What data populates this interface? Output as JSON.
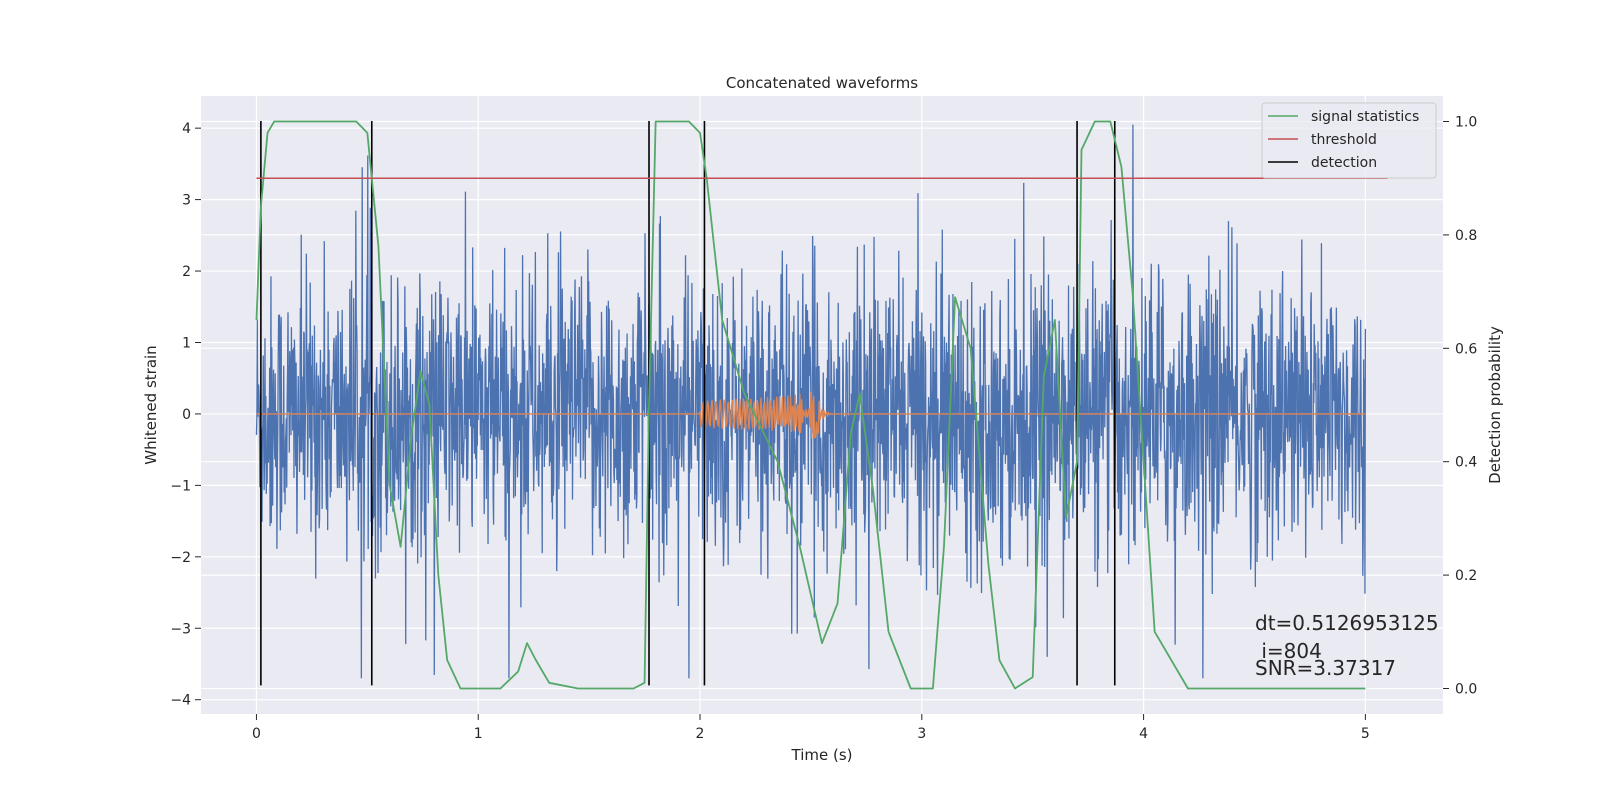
{
  "chart_data": {
    "type": "line",
    "title": "Concatenated waveforms",
    "xlabel": "Time (s)",
    "ylabel_left": "Whitened strain",
    "ylabel_right": "Detection probability",
    "xlim": [
      -0.25,
      5.35
    ],
    "ylim_left": [
      -4.2,
      4.45
    ],
    "ylim_right": [
      -0.045,
      1.045
    ],
    "x_ticks": [
      0,
      1,
      2,
      3,
      4,
      5
    ],
    "y_ticks_left": [
      -4,
      -3,
      -2,
      -1,
      0,
      1,
      2,
      3,
      4
    ],
    "y_ticks_right": [
      0.0,
      0.2,
      0.4,
      0.6,
      0.8,
      1.0
    ],
    "x_tick_labels": [
      "0",
      "1",
      "2",
      "3",
      "4",
      "5"
    ],
    "y_tick_labels_left": [
      "−4",
      "−3",
      "−2",
      "−1",
      "0",
      "1",
      "2",
      "3",
      "4"
    ],
    "y_tick_labels_right": [
      "0.0",
      "0.2",
      "0.4",
      "0.6",
      "0.8",
      "1.0"
    ],
    "grid": true,
    "background": "#eaeaf2",
    "legend_position": "top-right",
    "colors": {
      "strain": "#4c72b0",
      "template": "#dd8452",
      "signal_statistics": "#55a868",
      "threshold": "#c44e52",
      "detection": "#000000"
    },
    "series": [
      {
        "name": "",
        "axis": "left",
        "color": "#4c72b0",
        "description_values": "whitened strain noise, x from 0 to 5 s, mostly within -2.5..3.5 with spikes to 4.1 and -3.8"
      },
      {
        "name": "",
        "axis": "left",
        "color": "#dd8452",
        "chirp": {
          "start": 2.0,
          "peak": 2.53,
          "end": 2.6,
          "peak_amplitude": 0.8
        }
      },
      {
        "name": "signal statistics",
        "axis": "right",
        "color": "#55a868",
        "x": [
          0.0,
          0.02,
          0.05,
          0.08,
          0.2,
          0.45,
          0.5,
          0.55,
          0.6,
          0.65,
          0.7,
          0.74,
          0.78,
          0.82,
          0.86,
          0.92,
          1.0,
          1.1,
          1.18,
          1.22,
          1.26,
          1.32,
          1.45,
          1.6,
          1.7,
          1.75,
          1.77,
          1.8,
          1.85,
          1.95,
          2.0,
          2.03,
          2.1,
          2.2,
          2.25,
          2.35,
          2.45,
          2.55,
          2.62,
          2.68,
          2.72,
          2.78,
          2.85,
          2.95,
          3.05,
          3.1,
          3.15,
          3.22,
          3.3,
          3.35,
          3.42,
          3.5,
          3.55,
          3.6,
          3.65,
          3.7,
          3.72,
          3.78,
          3.85,
          3.9,
          3.95,
          4.05,
          4.2,
          4.5,
          5.0
        ],
        "y": [
          0.65,
          0.85,
          0.98,
          1.0,
          1.0,
          1.0,
          0.98,
          0.78,
          0.36,
          0.25,
          0.45,
          0.56,
          0.5,
          0.2,
          0.05,
          0.0,
          0.0,
          0.0,
          0.03,
          0.08,
          0.05,
          0.01,
          0.0,
          0.0,
          0.0,
          0.01,
          0.5,
          1.0,
          1.0,
          1.0,
          0.98,
          0.9,
          0.65,
          0.52,
          0.48,
          0.4,
          0.25,
          0.08,
          0.15,
          0.45,
          0.52,
          0.35,
          0.1,
          0.0,
          0.0,
          0.25,
          0.69,
          0.6,
          0.22,
          0.05,
          0.0,
          0.02,
          0.55,
          0.65,
          0.3,
          0.4,
          0.95,
          1.0,
          1.0,
          0.92,
          0.7,
          0.1,
          0.0,
          0.0,
          0.0
        ]
      },
      {
        "name": "threshold",
        "axis": "right",
        "color": "#c44e52",
        "x": [
          0.0,
          5.1
        ],
        "y": [
          0.9,
          0.9
        ]
      },
      {
        "name": "detection",
        "axis": "left",
        "color": "#000000",
        "x_positions": [
          0.02,
          0.52,
          1.77,
          2.02,
          3.7,
          3.87
        ],
        "y_range": [
          -3.8,
          4.1
        ]
      }
    ],
    "annotations": [
      "dt=0.5126953125",
      " i=804",
      "SNR=3.37317"
    ]
  }
}
